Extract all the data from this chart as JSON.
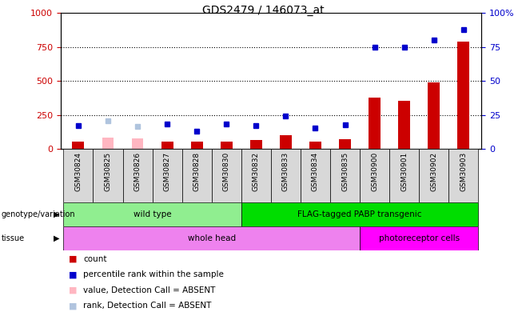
{
  "title": "GDS2479 / 146073_at",
  "samples": [
    "GSM30824",
    "GSM30825",
    "GSM30826",
    "GSM30827",
    "GSM30828",
    "GSM30830",
    "GSM30832",
    "GSM30833",
    "GSM30834",
    "GSM30835",
    "GSM30900",
    "GSM30901",
    "GSM30902",
    "GSM30903"
  ],
  "count_values": [
    55,
    0,
    0,
    55,
    55,
    55,
    65,
    100,
    55,
    75,
    380,
    355,
    490,
    790
  ],
  "rank_left_values": [
    170,
    0,
    0,
    185,
    130,
    185,
    175,
    240,
    155,
    180,
    0,
    0,
    0,
    0
  ],
  "absent_count": [
    0,
    85,
    80,
    0,
    0,
    0,
    0,
    0,
    0,
    0,
    0,
    0,
    0,
    0
  ],
  "absent_rank_left": [
    0,
    205,
    165,
    0,
    0,
    0,
    0,
    0,
    0,
    0,
    0,
    0,
    0,
    0
  ],
  "is_absent": [
    false,
    true,
    true,
    false,
    false,
    false,
    false,
    false,
    false,
    false,
    false,
    false,
    false,
    false
  ],
  "high_rank_samples": [
    10,
    11,
    12,
    13
  ],
  "high_rank_values": [
    750,
    750,
    800,
    880
  ],
  "genotype_groups": [
    {
      "label": "wild type",
      "start": 0,
      "end": 6,
      "color": "#90EE90"
    },
    {
      "label": "FLAG-tagged PABP transgenic",
      "start": 6,
      "end": 14,
      "color": "#00DD00"
    }
  ],
  "tissue_groups": [
    {
      "label": "whole head",
      "start": 0,
      "end": 10,
      "color": "#EE82EE"
    },
    {
      "label": "photoreceptor cells",
      "start": 10,
      "end": 14,
      "color": "#FF00FF"
    }
  ],
  "left_ylim": [
    0,
    1000
  ],
  "right_ylim": [
    0,
    100
  ],
  "left_yticks": [
    0,
    250,
    500,
    750,
    1000
  ],
  "right_yticks": [
    0,
    25,
    50,
    75,
    100
  ],
  "left_color": "#CC0000",
  "right_color": "#0000CC",
  "count_color": "#CC0000",
  "rank_color": "#0000CC",
  "absent_count_color": "#FFB6C1",
  "absent_rank_color": "#B0C4DE",
  "right_tick_labels": [
    "0",
    "25",
    "50",
    "75",
    "100%"
  ],
  "legend_items": [
    {
      "label": "count",
      "color": "#CC0000"
    },
    {
      "label": "percentile rank within the sample",
      "color": "#0000CC"
    },
    {
      "label": "value, Detection Call = ABSENT",
      "color": "#FFB6C1"
    },
    {
      "label": "rank, Detection Call = ABSENT",
      "color": "#B0C4DE"
    }
  ]
}
